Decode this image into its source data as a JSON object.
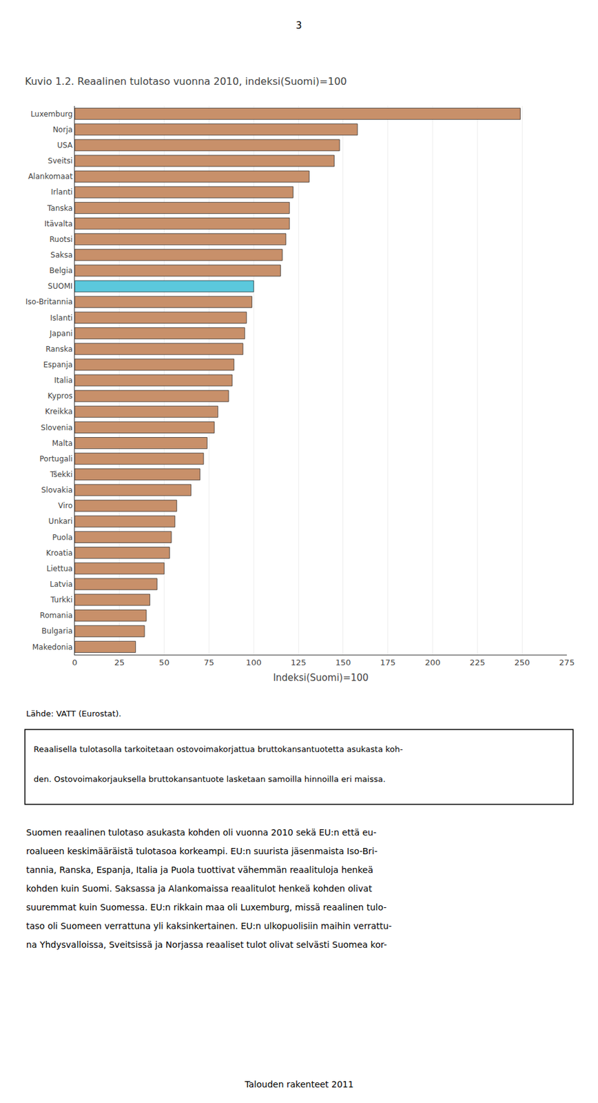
{
  "chart_data": {
    "type": "bar",
    "orientation": "horizontal",
    "title": "Kuvio 1.2. Reaalinen tulotaso vuonna 2010, indeksi(Suomi)=100",
    "xlabel": "Indeksi(Suomi)=100",
    "categories": [
      "Luxemburg",
      "Norja",
      "USA",
      "Sveitsi",
      "Alankomaat",
      "Irlanti",
      "Tanska",
      "Itävalta",
      "Ruotsi",
      "Saksa",
      "Belgia",
      "SUOMI",
      "Iso-Britannia",
      "Islanti",
      "Japani",
      "Ranska",
      "Espanja",
      "Italia",
      "Kypros",
      "Kreikka",
      "Slovenia",
      "Malta",
      "Portugali",
      "Tšekki",
      "Slovakia",
      "Viro",
      "Unkari",
      "Puola",
      "Kroatia",
      "Liettua",
      "Latvia",
      "Turkki",
      "Romania",
      "Bulgaria",
      "Makedonia"
    ],
    "values": [
      249,
      158,
      148,
      145,
      131,
      122,
      120,
      120,
      118,
      116,
      115,
      100,
      99,
      96,
      95,
      94,
      89,
      88,
      86,
      80,
      78,
      74,
      72,
      70,
      65,
      57,
      56,
      54,
      53,
      50,
      46,
      42,
      40,
      39,
      34
    ],
    "colors": [
      "#c8906a",
      "#c8906a",
      "#c8906a",
      "#c8906a",
      "#c8906a",
      "#c8906a",
      "#c8906a",
      "#c8906a",
      "#c8906a",
      "#c8906a",
      "#c8906a",
      "#5bc8dc",
      "#c8906a",
      "#c8906a",
      "#c8906a",
      "#c8906a",
      "#c8906a",
      "#c8906a",
      "#c8906a",
      "#c8906a",
      "#c8906a",
      "#c8906a",
      "#c8906a",
      "#c8906a",
      "#c8906a",
      "#c8906a",
      "#c8906a",
      "#c8906a",
      "#c8906a",
      "#c8906a",
      "#c8906a",
      "#c8906a",
      "#c8906a",
      "#c8906a",
      "#c8906a"
    ],
    "xlim": [
      0,
      275
    ],
    "xticks": [
      0,
      25,
      50,
      75,
      100,
      125,
      150,
      175,
      200,
      225,
      250,
      275
    ],
    "grid": true,
    "annotations": [
      "3",
      "Lähde: VATT (Eurostat).",
      "Reaalisella tulotasolla tarkoitetaan ostovoimakorjattua bruttokansantuotetta asukasta koh-",
      "den. Ostovoimakorjauksella bruttokansantuote lasketaan samoilla hinnoilla eri maissa.",
      "Suomen reaalinen tulotaso asukasta kohden oli vuonna 2010 sekä EU:n että eu-",
      "roalueen keskimääräistä tulotasoa korkeampi. EU:n suurista jäsenmaista Iso-Bri-",
      "tannia, Ranska, Espanja, Italia ja Puola tuottivat vähemmän reaalituloja henkeä",
      "kohden kuin Suomi. Saksassa ja Alankomaissa reaalitulot henkeä kohden olivat",
      "suuremmat kuin Suomessa. EU:n rikkain maa oli Luxemburg, missä reaalinen tulo-",
      "taso oli Suomeen verrattuna yli kaksinkertainen. EU:n ulkopuolisiin maihin verrattu-",
      "na Yhdysvalloissa, Sveitsissä ja Norjassa reaaliset tulot olivat selvästi Suomea kor-",
      "Talouden rakenteet 2011"
    ]
  }
}
